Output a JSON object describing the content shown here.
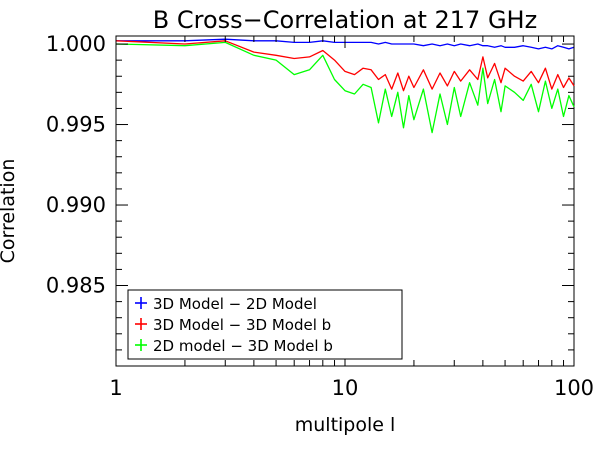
{
  "chart_data": {
    "type": "line",
    "title": "B Cross−Correlation at 217 GHz",
    "xlabel": "multipole l",
    "ylabel": "Correlation",
    "xscale": "log",
    "xlim": [
      1,
      100
    ],
    "ylim": [
      0.98,
      1.0005
    ],
    "xticks": [
      {
        "value": 1,
        "label": "1"
      },
      {
        "value": 10,
        "label": "10"
      },
      {
        "value": 100,
        "label": "100"
      }
    ],
    "yticks": [
      {
        "value": 1.0,
        "label": "1.000"
      },
      {
        "value": 0.995,
        "label": "0.995"
      },
      {
        "value": 0.99,
        "label": "0.990"
      },
      {
        "value": 0.985,
        "label": "0.985"
      }
    ],
    "grid": false,
    "legend_position": "bottom-left",
    "series": [
      {
        "name": "3D Model − 2D Model",
        "color": "#0000ff",
        "x": [
          1,
          2,
          3,
          4,
          5,
          6,
          7,
          8,
          9,
          10,
          11,
          12,
          13,
          14,
          15,
          16,
          17,
          18,
          19,
          20,
          22,
          24,
          26,
          28,
          30,
          32,
          35,
          38,
          40,
          42,
          45,
          48,
          50,
          55,
          60,
          65,
          70,
          75,
          80,
          85,
          90,
          95,
          100
        ],
        "y": [
          1.0002,
          1.0002,
          1.0003,
          1.0002,
          1.0002,
          1.0001,
          1.0001,
          1.0002,
          1.0001,
          1.0001,
          1.0001,
          1.0001,
          1.0001,
          1.0,
          1.0001,
          1.0,
          1.0,
          1.0,
          1.0,
          1.0,
          0.9999,
          1.0,
          0.9999,
          1.0,
          0.9999,
          1.0,
          0.9999,
          1.0,
          0.9999,
          0.9999,
          0.9998,
          0.9999,
          0.9998,
          0.9998,
          0.9999,
          0.9998,
          0.9997,
          0.9998,
          0.9997,
          0.9999,
          0.9998,
          0.9997,
          0.9998
        ]
      },
      {
        "name": "3D Model − 3D Model b",
        "color": "#ff0000",
        "x": [
          1,
          2,
          3,
          4,
          5,
          6,
          7,
          8,
          9,
          10,
          11,
          12,
          13,
          14,
          15,
          16,
          17,
          18,
          19,
          20,
          22,
          24,
          26,
          28,
          30,
          32,
          35,
          38,
          40,
          42,
          45,
          48,
          50,
          55,
          60,
          65,
          70,
          75,
          80,
          85,
          90,
          95,
          100
        ],
        "y": [
          1.0002,
          1.0,
          1.0002,
          0.9995,
          0.9993,
          0.9991,
          0.9992,
          0.9996,
          0.999,
          0.9983,
          0.9981,
          0.9985,
          0.9984,
          0.9978,
          0.9981,
          0.9972,
          0.9982,
          0.9971,
          0.998,
          0.9973,
          0.9984,
          0.9972,
          0.9982,
          0.9974,
          0.9983,
          0.9977,
          0.9984,
          0.9978,
          0.9992,
          0.9979,
          0.9988,
          0.9976,
          0.9985,
          0.998,
          0.9977,
          0.9983,
          0.9976,
          0.9985,
          0.9972,
          0.9981,
          0.9973,
          0.9979,
          0.9974
        ]
      },
      {
        "name": "2D model − 3D Model b",
        "color": "#00ff00",
        "x": [
          1,
          2,
          3,
          4,
          5,
          6,
          7,
          8,
          9,
          10,
          11,
          12,
          13,
          14,
          15,
          16,
          17,
          18,
          19,
          20,
          22,
          24,
          26,
          28,
          30,
          32,
          35,
          38,
          40,
          42,
          45,
          48,
          50,
          55,
          60,
          65,
          70,
          75,
          80,
          85,
          90,
          95,
          100
        ],
        "y": [
          1.0,
          0.9999,
          1.0001,
          0.9993,
          0.999,
          0.9981,
          0.9984,
          0.9993,
          0.9978,
          0.9971,
          0.9969,
          0.9975,
          0.9973,
          0.9951,
          0.9972,
          0.9955,
          0.997,
          0.9948,
          0.9968,
          0.9953,
          0.9972,
          0.9945,
          0.9969,
          0.995,
          0.9973,
          0.9955,
          0.9976,
          0.9962,
          0.9985,
          0.9963,
          0.9978,
          0.9958,
          0.9974,
          0.997,
          0.9965,
          0.9975,
          0.9958,
          0.9977,
          0.996,
          0.9972,
          0.9955,
          0.9968,
          0.9961
        ]
      }
    ]
  }
}
